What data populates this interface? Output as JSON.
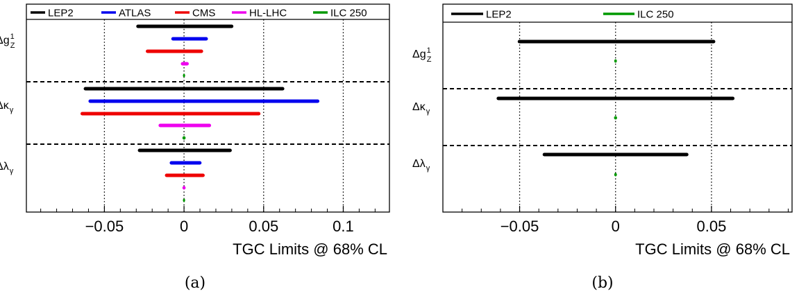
{
  "chart_data": [
    {
      "type": "range",
      "panel_label": "(a)",
      "xlabel": "TGC Limits @ 68% CL",
      "xlim": [
        -0.099,
        0.129
      ],
      "x_ticks": [
        -0.05,
        0,
        0.05,
        0.1
      ],
      "x_tick_labels": [
        "−0.05",
        "0",
        "0.05",
        "0.1"
      ],
      "dotted_gridlines_at": [
        -0.05,
        0,
        0.05,
        0.1
      ],
      "legend_position": "top",
      "series": [
        {
          "name": "LEP2",
          "color": "#000000"
        },
        {
          "name": "ATLAS",
          "color": "#0000ee"
        },
        {
          "name": "CMS",
          "color": "#ee0000"
        },
        {
          "name": "HL-LHC",
          "color": "#ee00ee"
        },
        {
          "name": "ILC 250",
          "color": "#009900"
        }
      ],
      "groups": [
        {
          "param": {
            "base": "Δg",
            "sub": "Z",
            "sup": "1"
          },
          "intervals": {
            "LEP2": [
              -0.03,
              0.031
            ],
            "ATLAS": [
              -0.008,
              0.015
            ],
            "CMS": [
              -0.024,
              0.012
            ],
            "HL-LHC": [
              -0.002,
              0.003
            ],
            "ILC 250": [
              -0.0007,
              0.0007
            ]
          }
        },
        {
          "param": {
            "base": "Δκ",
            "sub": "γ",
            "sup": ""
          },
          "intervals": {
            "LEP2": [
              -0.063,
              0.063
            ],
            "ATLAS": [
              -0.06,
              0.085
            ],
            "CMS": [
              -0.065,
              0.048
            ],
            "HL-LHC": [
              -0.016,
              0.017
            ],
            "ILC 250": [
              -0.001,
              0.001
            ]
          }
        },
        {
          "param": {
            "base": "Δλ",
            "sub": "γ",
            "sup": ""
          },
          "intervals": {
            "LEP2": [
              -0.029,
              0.03
            ],
            "ATLAS": [
              -0.009,
              0.011
            ],
            "CMS": [
              -0.012,
              0.013
            ],
            "HL-LHC": [
              -0.001,
              0.001
            ],
            "ILC 250": [
              -0.0007,
              0.0007
            ]
          }
        }
      ]
    },
    {
      "type": "range",
      "panel_label": "(b)",
      "xlabel": "TGC Limits @ 68% CL",
      "xlim": [
        -0.09,
        0.092
      ],
      "x_ticks": [
        -0.05,
        0,
        0.05
      ],
      "x_tick_labels": [
        "−0.05",
        "0",
        "0.05"
      ],
      "dotted_gridlines_at": [
        -0.05,
        0,
        0.05
      ],
      "legend_position": "top",
      "series": [
        {
          "name": "LEP2",
          "color": "#000000"
        },
        {
          "name": "ILC 250",
          "color": "#009900"
        }
      ],
      "groups": [
        {
          "param": {
            "base": "Δg",
            "sub": "Z",
            "sup": "1"
          },
          "intervals": {
            "LEP2": [
              -0.051,
              0.052
            ],
            "ILC 250": [
              -0.0007,
              0.0007
            ]
          }
        },
        {
          "param": {
            "base": "Δκ",
            "sub": "γ",
            "sup": ""
          },
          "intervals": {
            "LEP2": [
              -0.062,
              0.062
            ],
            "ILC 250": [
              -0.0008,
              0.0008
            ]
          }
        },
        {
          "param": {
            "base": "Δλ",
            "sub": "γ",
            "sup": ""
          },
          "intervals": {
            "LEP2": [
              -0.038,
              0.038
            ],
            "ILC 250": [
              -0.0007,
              0.0007
            ]
          }
        }
      ]
    }
  ]
}
